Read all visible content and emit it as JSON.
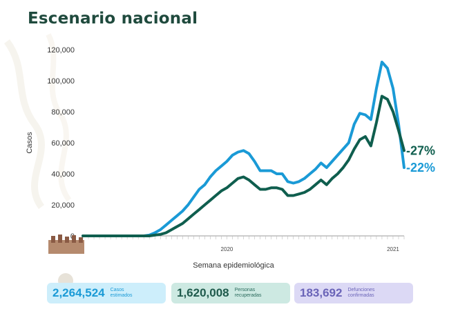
{
  "title": "Escenario nacional",
  "colors": {
    "title": "#1f4a3d",
    "cases_line": "#1a9ad6",
    "deaths_line": "#0f5e4e",
    "pct_cases": "#1a9ad6",
    "pct_deaths": "#0f5e4e"
  },
  "chart_data": {
    "type": "line",
    "ylabel": "Casos",
    "xlabel": "Semana epidemiológica",
    "ylim": [
      0,
      120000
    ],
    "yticks": [
      "120,000",
      "100,000",
      "80,000",
      "60,000",
      "40,000",
      "20,000",
      "0"
    ],
    "ytick_values": [
      120000,
      100000,
      80000,
      60000,
      40000,
      20000,
      0
    ],
    "year_labels": [
      {
        "label": "2020",
        "week_index": 26
      },
      {
        "label": "2021",
        "week_index": 56
      }
    ],
    "series": [
      {
        "name": "",
        "color": "#1a9ad6",
        "values": [
          0,
          0,
          0,
          0,
          0,
          0,
          0,
          0,
          0,
          0,
          0,
          0,
          500,
          2000,
          4000,
          7000,
          10000,
          13000,
          16000,
          20000,
          25000,
          30000,
          33000,
          38000,
          42000,
          45000,
          48000,
          52000,
          54000,
          55000,
          53000,
          48000,
          42000,
          42000,
          42000,
          40000,
          40000,
          35000,
          34000,
          35000,
          37000,
          40000,
          43000,
          47000,
          44000,
          48000,
          52000,
          56000,
          60000,
          72000,
          79000,
          78000,
          75000,
          95000,
          112000,
          108000,
          95000,
          72000,
          44000
        ]
      },
      {
        "name": "",
        "color": "#0f5e4e",
        "values": [
          0,
          0,
          0,
          0,
          0,
          0,
          0,
          0,
          0,
          0,
          0,
          0,
          0,
          500,
          1000,
          2000,
          4000,
          6000,
          8000,
          11000,
          14000,
          17000,
          20000,
          23000,
          26000,
          29000,
          31000,
          34000,
          37000,
          38000,
          36000,
          33000,
          30000,
          30000,
          31000,
          31000,
          30000,
          26000,
          26000,
          27000,
          28000,
          30000,
          33000,
          36000,
          33000,
          37000,
          40000,
          44000,
          49000,
          56000,
          62000,
          64000,
          58000,
          73000,
          90000,
          88000,
          80000,
          68000,
          55000
        ]
      }
    ],
    "annotations": [
      {
        "text": "-27%",
        "series": 1
      },
      {
        "text": "-22%",
        "series": 0
      }
    ]
  },
  "footer": {
    "cases": {
      "value": "2,264,524",
      "label1": "Casos",
      "label2": "estimados"
    },
    "recovered": {
      "value": "1,620,008",
      "label1": "Personas",
      "label2": "recuperadas"
    },
    "deaths": {
      "value": "183,692",
      "label1": "Defunciones",
      "label2": "confirmadas"
    }
  }
}
